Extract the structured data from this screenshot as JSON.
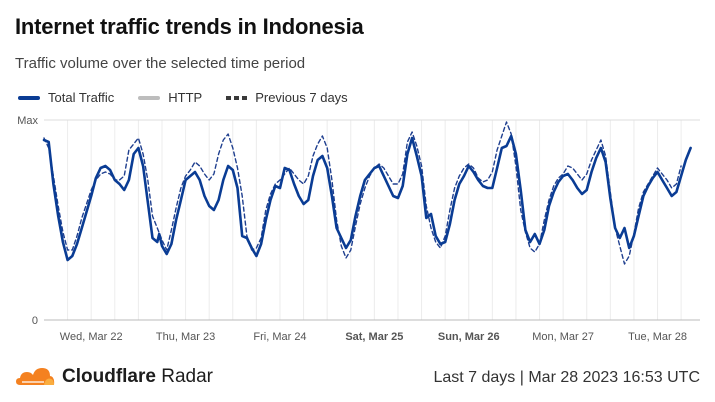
{
  "header": {
    "title": "Internet traffic trends in Indonesia",
    "subtitle": "Traffic volume over the selected time period"
  },
  "legend": [
    {
      "label": "Total Traffic",
      "style": "solid",
      "color": "#0a3c94"
    },
    {
      "label": "HTTP",
      "style": "solid",
      "color": "#bdbdbd"
    },
    {
      "label": "Previous 7 days",
      "style": "dashed",
      "color": "#3a3a3a"
    }
  ],
  "footer": {
    "brand_name": "Cloudflare",
    "brand_product": "Radar",
    "period_label": "Last 7 days",
    "timestamp": "Mar 28 2023 16:53 UTC"
  },
  "chart_data": {
    "type": "line",
    "title": "Internet traffic trends in Indonesia",
    "ylabel": "",
    "xlabel": "",
    "y_ticks": [
      "0",
      "Max"
    ],
    "ylim": [
      0,
      1
    ],
    "x_ticks": [
      {
        "label": "Wed, Mar 22",
        "bold": false,
        "day": 0.5
      },
      {
        "label": "Thu, Mar 23",
        "bold": false,
        "day": 1.5
      },
      {
        "label": "Fri, Mar 24",
        "bold": false,
        "day": 2.5
      },
      {
        "label": "Sat, Mar 25",
        "bold": true,
        "day": 3.5
      },
      {
        "label": "Sun, Mar 26",
        "bold": true,
        "day": 4.5
      },
      {
        "label": "Mon, Mar 27",
        "bold": false,
        "day": 5.5
      },
      {
        "label": "Tue, Mar 28",
        "bold": false,
        "day": 6.5
      }
    ],
    "xlim": [
      0,
      6.95
    ],
    "grid": true,
    "series": [
      {
        "name": "Total Traffic",
        "color": "#0a3c94",
        "style": "solid",
        "points": [
          [
            0.0,
            0.9
          ],
          [
            0.05,
            0.89
          ],
          [
            0.1,
            0.68
          ],
          [
            0.15,
            0.52
          ],
          [
            0.2,
            0.39
          ],
          [
            0.25,
            0.3
          ],
          [
            0.3,
            0.32
          ],
          [
            0.35,
            0.38
          ],
          [
            0.4,
            0.46
          ],
          [
            0.45,
            0.54
          ],
          [
            0.5,
            0.62
          ],
          [
            0.55,
            0.71
          ],
          [
            0.6,
            0.76
          ],
          [
            0.65,
            0.77
          ],
          [
            0.7,
            0.75
          ],
          [
            0.75,
            0.7
          ],
          [
            0.8,
            0.68
          ],
          [
            0.85,
            0.65
          ],
          [
            0.9,
            0.7
          ],
          [
            0.95,
            0.83
          ],
          [
            1.0,
            0.86
          ],
          [
            1.05,
            0.77
          ],
          [
            1.1,
            0.59
          ],
          [
            1.15,
            0.41
          ],
          [
            1.2,
            0.39
          ],
          [
            1.22,
            0.43
          ],
          [
            1.25,
            0.37
          ],
          [
            1.3,
            0.33
          ],
          [
            1.35,
            0.38
          ],
          [
            1.4,
            0.5
          ],
          [
            1.45,
            0.6
          ],
          [
            1.5,
            0.7
          ],
          [
            1.55,
            0.72
          ],
          [
            1.6,
            0.74
          ],
          [
            1.65,
            0.7
          ],
          [
            1.7,
            0.62
          ],
          [
            1.75,
            0.57
          ],
          [
            1.8,
            0.55
          ],
          [
            1.85,
            0.6
          ],
          [
            1.9,
            0.7
          ],
          [
            1.95,
            0.77
          ],
          [
            2.0,
            0.75
          ],
          [
            2.05,
            0.66
          ],
          [
            2.1,
            0.42
          ],
          [
            2.15,
            0.41
          ],
          [
            2.2,
            0.36
          ],
          [
            2.25,
            0.32
          ],
          [
            2.3,
            0.38
          ],
          [
            2.35,
            0.5
          ],
          [
            2.4,
            0.6
          ],
          [
            2.45,
            0.67
          ],
          [
            2.5,
            0.66
          ],
          [
            2.55,
            0.76
          ],
          [
            2.6,
            0.75
          ],
          [
            2.65,
            0.68
          ],
          [
            2.7,
            0.62
          ],
          [
            2.75,
            0.58
          ],
          [
            2.8,
            0.6
          ],
          [
            2.85,
            0.72
          ],
          [
            2.9,
            0.8
          ],
          [
            2.95,
            0.82
          ],
          [
            3.0,
            0.76
          ],
          [
            3.05,
            0.62
          ],
          [
            3.1,
            0.46
          ],
          [
            3.15,
            0.41
          ],
          [
            3.2,
            0.36
          ],
          [
            3.25,
            0.4
          ],
          [
            3.3,
            0.52
          ],
          [
            3.35,
            0.62
          ],
          [
            3.4,
            0.7
          ],
          [
            3.45,
            0.73
          ],
          [
            3.5,
            0.76
          ],
          [
            3.55,
            0.77
          ],
          [
            3.6,
            0.72
          ],
          [
            3.65,
            0.67
          ],
          [
            3.7,
            0.62
          ],
          [
            3.75,
            0.61
          ],
          [
            3.8,
            0.67
          ],
          [
            3.85,
            0.83
          ],
          [
            3.9,
            0.91
          ],
          [
            3.95,
            0.82
          ],
          [
            4.0,
            0.72
          ],
          [
            4.05,
            0.51
          ],
          [
            4.1,
            0.53
          ],
          [
            4.15,
            0.42
          ],
          [
            4.2,
            0.38
          ],
          [
            4.25,
            0.39
          ],
          [
            4.3,
            0.48
          ],
          [
            4.35,
            0.6
          ],
          [
            4.4,
            0.68
          ],
          [
            4.45,
            0.72
          ],
          [
            4.5,
            0.77
          ],
          [
            4.55,
            0.74
          ],
          [
            4.6,
            0.7
          ],
          [
            4.65,
            0.67
          ],
          [
            4.7,
            0.66
          ],
          [
            4.75,
            0.66
          ],
          [
            4.8,
            0.76
          ],
          [
            4.85,
            0.86
          ],
          [
            4.9,
            0.87
          ],
          [
            4.95,
            0.92
          ],
          [
            5.0,
            0.83
          ],
          [
            5.05,
            0.65
          ],
          [
            5.1,
            0.45
          ],
          [
            5.15,
            0.39
          ],
          [
            5.2,
            0.43
          ],
          [
            5.25,
            0.38
          ],
          [
            5.3,
            0.45
          ],
          [
            5.35,
            0.57
          ],
          [
            5.4,
            0.64
          ],
          [
            5.45,
            0.69
          ],
          [
            5.5,
            0.72
          ],
          [
            5.55,
            0.73
          ],
          [
            5.6,
            0.7
          ],
          [
            5.65,
            0.66
          ],
          [
            5.7,
            0.63
          ],
          [
            5.75,
            0.65
          ],
          [
            5.8,
            0.74
          ],
          [
            5.85,
            0.81
          ],
          [
            5.9,
            0.86
          ],
          [
            5.95,
            0.79
          ],
          [
            6.0,
            0.61
          ],
          [
            6.05,
            0.46
          ],
          [
            6.1,
            0.41
          ],
          [
            6.15,
            0.46
          ],
          [
            6.2,
            0.36
          ],
          [
            6.25,
            0.42
          ],
          [
            6.3,
            0.52
          ],
          [
            6.35,
            0.62
          ],
          [
            6.4,
            0.67
          ],
          [
            6.45,
            0.71
          ],
          [
            6.5,
            0.74
          ],
          [
            6.55,
            0.7
          ],
          [
            6.6,
            0.66
          ],
          [
            6.65,
            0.62
          ],
          [
            6.7,
            0.64
          ],
          [
            6.75,
            0.72
          ],
          [
            6.8,
            0.8
          ],
          [
            6.85,
            0.86
          ]
        ]
      },
      {
        "name": "Previous 7 days",
        "color": "#1f3f8f",
        "style": "dashed",
        "points": [
          [
            0.0,
            0.91
          ],
          [
            0.05,
            0.86
          ],
          [
            0.1,
            0.72
          ],
          [
            0.15,
            0.57
          ],
          [
            0.2,
            0.44
          ],
          [
            0.25,
            0.35
          ],
          [
            0.3,
            0.35
          ],
          [
            0.35,
            0.42
          ],
          [
            0.4,
            0.51
          ],
          [
            0.45,
            0.58
          ],
          [
            0.5,
            0.65
          ],
          [
            0.55,
            0.7
          ],
          [
            0.6,
            0.73
          ],
          [
            0.65,
            0.74
          ],
          [
            0.7,
            0.73
          ],
          [
            0.75,
            0.7
          ],
          [
            0.8,
            0.7
          ],
          [
            0.85,
            0.72
          ],
          [
            0.9,
            0.85
          ],
          [
            0.95,
            0.88
          ],
          [
            1.0,
            0.91
          ],
          [
            1.05,
            0.83
          ],
          [
            1.1,
            0.7
          ],
          [
            1.15,
            0.52
          ],
          [
            1.2,
            0.46
          ],
          [
            1.25,
            0.4
          ],
          [
            1.3,
            0.35
          ],
          [
            1.35,
            0.45
          ],
          [
            1.4,
            0.56
          ],
          [
            1.45,
            0.66
          ],
          [
            1.5,
            0.72
          ],
          [
            1.55,
            0.75
          ],
          [
            1.6,
            0.79
          ],
          [
            1.65,
            0.77
          ],
          [
            1.7,
            0.73
          ],
          [
            1.75,
            0.7
          ],
          [
            1.8,
            0.73
          ],
          [
            1.85,
            0.83
          ],
          [
            1.9,
            0.9
          ],
          [
            1.95,
            0.93
          ],
          [
            2.0,
            0.86
          ],
          [
            2.05,
            0.76
          ],
          [
            2.1,
            0.62
          ],
          [
            2.15,
            0.42
          ],
          [
            2.2,
            0.35
          ],
          [
            2.25,
            0.36
          ],
          [
            2.3,
            0.41
          ],
          [
            2.35,
            0.55
          ],
          [
            2.4,
            0.63
          ],
          [
            2.45,
            0.68
          ],
          [
            2.5,
            0.7
          ],
          [
            2.55,
            0.73
          ],
          [
            2.6,
            0.76
          ],
          [
            2.65,
            0.73
          ],
          [
            2.7,
            0.7
          ],
          [
            2.75,
            0.68
          ],
          [
            2.8,
            0.72
          ],
          [
            2.85,
            0.82
          ],
          [
            2.9,
            0.88
          ],
          [
            2.95,
            0.92
          ],
          [
            3.0,
            0.86
          ],
          [
            3.05,
            0.7
          ],
          [
            3.1,
            0.5
          ],
          [
            3.15,
            0.37
          ],
          [
            3.2,
            0.31
          ],
          [
            3.25,
            0.35
          ],
          [
            3.3,
            0.47
          ],
          [
            3.35,
            0.58
          ],
          [
            3.4,
            0.66
          ],
          [
            3.45,
            0.72
          ],
          [
            3.5,
            0.76
          ],
          [
            3.55,
            0.78
          ],
          [
            3.6,
            0.76
          ],
          [
            3.65,
            0.72
          ],
          [
            3.7,
            0.68
          ],
          [
            3.75,
            0.68
          ],
          [
            3.8,
            0.73
          ],
          [
            3.85,
            0.89
          ],
          [
            3.9,
            0.94
          ],
          [
            3.95,
            0.87
          ],
          [
            4.0,
            0.77
          ],
          [
            4.05,
            0.57
          ],
          [
            4.1,
            0.46
          ],
          [
            4.15,
            0.39
          ],
          [
            4.2,
            0.36
          ],
          [
            4.25,
            0.42
          ],
          [
            4.3,
            0.55
          ],
          [
            4.35,
            0.66
          ],
          [
            4.4,
            0.72
          ],
          [
            4.45,
            0.76
          ],
          [
            4.5,
            0.78
          ],
          [
            4.55,
            0.76
          ],
          [
            4.6,
            0.71
          ],
          [
            4.65,
            0.69
          ],
          [
            4.7,
            0.7
          ],
          [
            4.75,
            0.74
          ],
          [
            4.8,
            0.85
          ],
          [
            4.85,
            0.92
          ],
          [
            4.9,
            0.99
          ],
          [
            4.95,
            0.93
          ],
          [
            5.0,
            0.77
          ],
          [
            5.05,
            0.55
          ],
          [
            5.1,
            0.44
          ],
          [
            5.15,
            0.36
          ],
          [
            5.2,
            0.34
          ],
          [
            5.25,
            0.38
          ],
          [
            5.3,
            0.5
          ],
          [
            5.35,
            0.6
          ],
          [
            5.4,
            0.67
          ],
          [
            5.45,
            0.71
          ],
          [
            5.5,
            0.73
          ],
          [
            5.55,
            0.77
          ],
          [
            5.6,
            0.76
          ],
          [
            5.65,
            0.73
          ],
          [
            5.7,
            0.7
          ],
          [
            5.75,
            0.73
          ],
          [
            5.8,
            0.8
          ],
          [
            5.85,
            0.85
          ],
          [
            5.9,
            0.9
          ],
          [
            5.95,
            0.82
          ],
          [
            6.0,
            0.64
          ],
          [
            6.05,
            0.46
          ],
          [
            6.1,
            0.37
          ],
          [
            6.15,
            0.28
          ],
          [
            6.2,
            0.32
          ],
          [
            6.25,
            0.43
          ],
          [
            6.3,
            0.56
          ],
          [
            6.35,
            0.64
          ],
          [
            6.4,
            0.68
          ],
          [
            6.45,
            0.72
          ],
          [
            6.5,
            0.76
          ],
          [
            6.55,
            0.73
          ],
          [
            6.6,
            0.7
          ],
          [
            6.65,
            0.66
          ],
          [
            6.7,
            0.68
          ],
          [
            6.75,
            0.77
          ]
        ]
      }
    ]
  }
}
